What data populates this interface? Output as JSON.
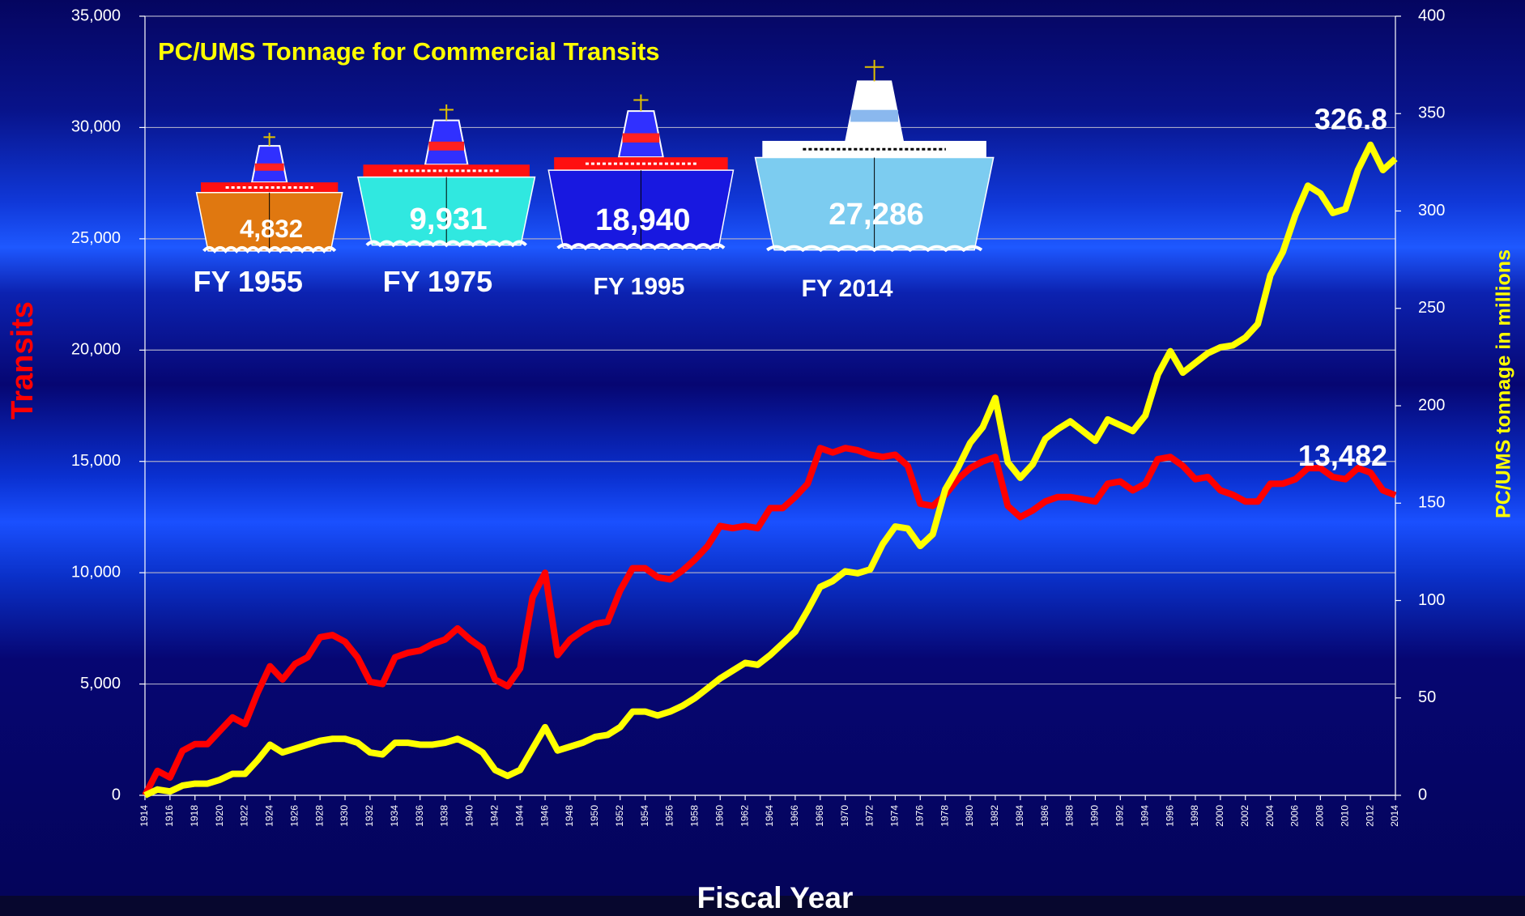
{
  "chart_data": {
    "type": "line",
    "title": "PC/UMS Tonnage for Commercial Transits",
    "xlabel": "Fiscal Year",
    "ylabel": "Transits",
    "y2label": "PC/UMS tonnage in millions",
    "x": [
      1914,
      1915,
      1916,
      1917,
      1918,
      1919,
      1920,
      1921,
      1922,
      1923,
      1924,
      1925,
      1926,
      1927,
      1928,
      1929,
      1930,
      1931,
      1932,
      1933,
      1934,
      1935,
      1936,
      1937,
      1938,
      1939,
      1940,
      1941,
      1942,
      1943,
      1944,
      1945,
      1946,
      1947,
      1948,
      1949,
      1950,
      1951,
      1952,
      1953,
      1954,
      1955,
      1956,
      1957,
      1958,
      1959,
      1960,
      1961,
      1962,
      1963,
      1964,
      1965,
      1966,
      1967,
      1968,
      1969,
      1970,
      1971,
      1972,
      1973,
      1974,
      1975,
      1976,
      1977,
      1978,
      1979,
      1980,
      1981,
      1982,
      1983,
      1984,
      1985,
      1986,
      1987,
      1988,
      1989,
      1990,
      1991,
      1992,
      1993,
      1994,
      1995,
      1996,
      1997,
      1998,
      1999,
      2000,
      2001,
      2002,
      2003,
      2004,
      2005,
      2006,
      2007,
      2008,
      2009,
      2010,
      2011,
      2012,
      2013,
      2014
    ],
    "xlim": [
      1914,
      2014
    ],
    "xticks": [
      1914,
      1916,
      1918,
      1920,
      1922,
      1924,
      1926,
      1928,
      1930,
      1932,
      1934,
      1936,
      1938,
      1940,
      1942,
      1944,
      1946,
      1948,
      1950,
      1952,
      1954,
      1956,
      1958,
      1960,
      1962,
      1964,
      1966,
      1968,
      1970,
      1972,
      1974,
      1976,
      1978,
      1980,
      1982,
      1984,
      1986,
      1988,
      1990,
      1992,
      1994,
      1996,
      1998,
      2000,
      2002,
      2004,
      2006,
      2008,
      2010,
      2012,
      2014
    ],
    "ylim": [
      0,
      35000
    ],
    "yticks": [
      0,
      {
        "value": 5000,
        "label": "5,000"
      },
      {
        "value": 10000,
        "label": "10,000"
      },
      {
        "value": 15000,
        "label": "15,000"
      },
      {
        "value": 20000,
        "label": "20,000"
      },
      {
        "value": 25000,
        "label": "25,000"
      },
      {
        "value": 30000,
        "label": "30,000"
      },
      {
        "value": 35000,
        "label": "35,000"
      }
    ],
    "y2lim": [
      0,
      400
    ],
    "y2ticks": [
      0,
      50,
      100,
      150,
      200,
      250,
      300,
      350,
      400
    ],
    "grid": true,
    "series": [
      {
        "color": "#ff0000",
        "values": [
          0,
          1100,
          800,
          2000,
          2300,
          2300,
          2900,
          3500,
          3200,
          4600,
          5800,
          5200,
          5900,
          6200,
          7100,
          7200,
          6900,
          6200,
          5100,
          5000,
          6200,
          6400,
          6500,
          6800,
          7000,
          7500,
          7000,
          6600,
          5200,
          4900,
          5700,
          8900,
          10000,
          6300,
          7000,
          7400,
          7700,
          7800,
          9200,
          10200,
          10200,
          9800,
          9700,
          10100,
          10600,
          11200,
          12100,
          12000,
          12100,
          12000,
          12900,
          12900,
          13400,
          14000,
          15600,
          15400,
          15600,
          15500,
          15300,
          15200,
          15300,
          14800,
          13100,
          13000,
          13500,
          14200,
          14700,
          15000,
          15200,
          13000,
          12500,
          12800,
          13200,
          13400,
          13400,
          13300,
          13200,
          14000,
          14100,
          13700,
          14000,
          15100,
          15200,
          14800,
          14200,
          14300,
          13700,
          13500,
          13200,
          13200,
          14000,
          14000,
          14200,
          14700,
          14700,
          14300,
          14200,
          14700,
          14500,
          13700,
          13482
        ],
        "value_labels": [
          null,
          null,
          null,
          null,
          null,
          null,
          null,
          null,
          null,
          null,
          null,
          null,
          null,
          null,
          null,
          null,
          null,
          null,
          null,
          null,
          null,
          null,
          null,
          null,
          null,
          null,
          null,
          null,
          null,
          null,
          null,
          null,
          null,
          null,
          null,
          null,
          null,
          null,
          null,
          null,
          null,
          null,
          null,
          null,
          null,
          null,
          null,
          null,
          null,
          null,
          null,
          null,
          null,
          null,
          null,
          null,
          null,
          null,
          null,
          null,
          null,
          null,
          null,
          null,
          null,
          null,
          null,
          null,
          null,
          null,
          null,
          null,
          null,
          null,
          null,
          null,
          null,
          null,
          null,
          null,
          null,
          null,
          null,
          null,
          null,
          null,
          null,
          null,
          null,
          null,
          null,
          null,
          null,
          null,
          null,
          null,
          null,
          null,
          null,
          null,
          "13,482"
        ]
      },
      {
        "color": "#ffff00",
        "axis": "y2",
        "values": [
          0,
          3,
          2,
          5,
          6,
          6,
          8,
          11,
          11,
          18,
          26,
          22,
          24,
          26,
          28,
          29,
          29,
          27,
          22,
          21,
          27,
          27,
          26,
          26,
          27,
          29,
          26,
          22,
          13,
          10,
          13,
          24,
          35,
          23,
          25,
          27,
          30,
          31,
          35,
          43,
          43,
          41,
          43,
          46,
          50,
          55,
          60,
          64,
          68,
          67,
          72,
          78,
          84,
          95,
          107,
          110,
          115,
          114,
          116,
          129,
          138,
          137,
          128,
          134,
          157,
          168,
          181,
          189,
          204,
          171,
          163,
          170,
          183,
          188,
          192,
          187,
          182,
          193,
          190,
          187,
          195,
          216,
          228,
          217,
          222,
          227,
          230,
          231,
          235,
          242,
          267,
          279,
          298,
          313,
          309,
          299,
          301,
          321,
          334,
          321,
          326.8
        ],
        "value_labels": [
          null,
          null,
          null,
          null,
          null,
          null,
          null,
          null,
          null,
          null,
          null,
          null,
          null,
          null,
          null,
          null,
          null,
          null,
          null,
          null,
          null,
          null,
          null,
          null,
          null,
          null,
          null,
          null,
          null,
          null,
          null,
          null,
          null,
          null,
          null,
          null,
          null,
          null,
          null,
          null,
          null,
          null,
          null,
          null,
          null,
          null,
          null,
          null,
          null,
          null,
          null,
          null,
          null,
          null,
          null,
          null,
          null,
          null,
          null,
          null,
          null,
          null,
          null,
          null,
          null,
          null,
          null,
          null,
          null,
          null,
          null,
          null,
          null,
          null,
          null,
          null,
          null,
          null,
          null,
          null,
          null,
          null,
          null,
          null,
          null,
          null,
          null,
          null,
          null,
          null,
          null,
          null,
          null,
          null,
          null,
          null,
          null,
          null,
          null,
          null,
          "326.8"
        ]
      }
    ],
    "ships": [
      {
        "value": "4,832",
        "label": "FY 1955"
      },
      {
        "value": "9,931",
        "label": "FY 1975"
      },
      {
        "value": "18,940",
        "label": "FY 1995"
      },
      {
        "value": "27,286",
        "label": "FY 2014"
      }
    ]
  }
}
